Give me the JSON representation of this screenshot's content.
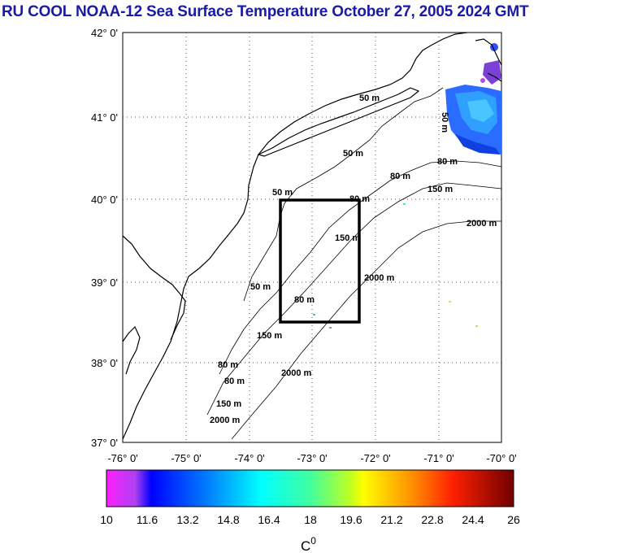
{
  "title": "RU COOL  NOAA-12 Sea Surface Temperature October 27, 2005 2024 GMT",
  "latitude_labels": [
    "42° 0'",
    "41° 0'",
    "40° 0'",
    "39° 0'",
    "38° 0'",
    "37° 0'"
  ],
  "longitude_labels": [
    "-76° 0'",
    "-75° 0'",
    "-74° 0'",
    "-73° 0'",
    "-72° 0'",
    "-71° 0'",
    "-70° 0'"
  ],
  "contour_labels": [
    {
      "name": "contour-50m-north",
      "text": "50 m"
    },
    {
      "name": "contour-50m-mid",
      "text": "50 m"
    },
    {
      "name": "contour-80m-east",
      "text": "80 m"
    },
    {
      "name": "contour-80m-east2",
      "text": "80 m"
    },
    {
      "name": "contour-150m-east",
      "text": "150 m"
    },
    {
      "name": "contour-2000m-east",
      "text": "2000 m"
    },
    {
      "name": "contour-50m-ne",
      "text": "50 m"
    },
    {
      "name": "contour-50m-box",
      "text": "50 m"
    },
    {
      "name": "contour-80m-box",
      "text": "80 m"
    },
    {
      "name": "contour-150m-box",
      "text": "150 m"
    },
    {
      "name": "contour-2000m-box",
      "text": "2000 m"
    },
    {
      "name": "contour-50m-west",
      "text": "50 m"
    },
    {
      "name": "contour-80m-west",
      "text": "80 m"
    },
    {
      "name": "contour-150m-west",
      "text": "150 m"
    },
    {
      "name": "contour-2000m-south",
      "text": "2000 m"
    },
    {
      "name": "contour-80m-sw",
      "text": "80 m"
    },
    {
      "name": "contour-80m-sw2",
      "text": "80 m"
    },
    {
      "name": "contour-150m-sw",
      "text": "150 m"
    },
    {
      "name": "contour-2000m-sw",
      "text": "2000 m"
    }
  ],
  "colorbar": {
    "tick_labels": [
      "10",
      "11.6",
      "13.2",
      "14.8",
      "16.4",
      "18",
      "19.6",
      "21.2",
      "22.8",
      "24.4",
      "26"
    ],
    "unit_base": "C",
    "unit_superscript": "0",
    "colors": [
      "#ff00ff",
      "#a040ff",
      "#0000ff",
      "#0060ff",
      "#00a0ff",
      "#00e0ff",
      "#30ffc0",
      "#80ff60",
      "#c0ff20",
      "#ffff00",
      "#ffc000",
      "#ff8000",
      "#ff3000",
      "#d00000",
      "#800000"
    ]
  },
  "colors": {
    "title": "#1a1aa8",
    "study_box": "#000000",
    "land_outline": "#000000"
  }
}
